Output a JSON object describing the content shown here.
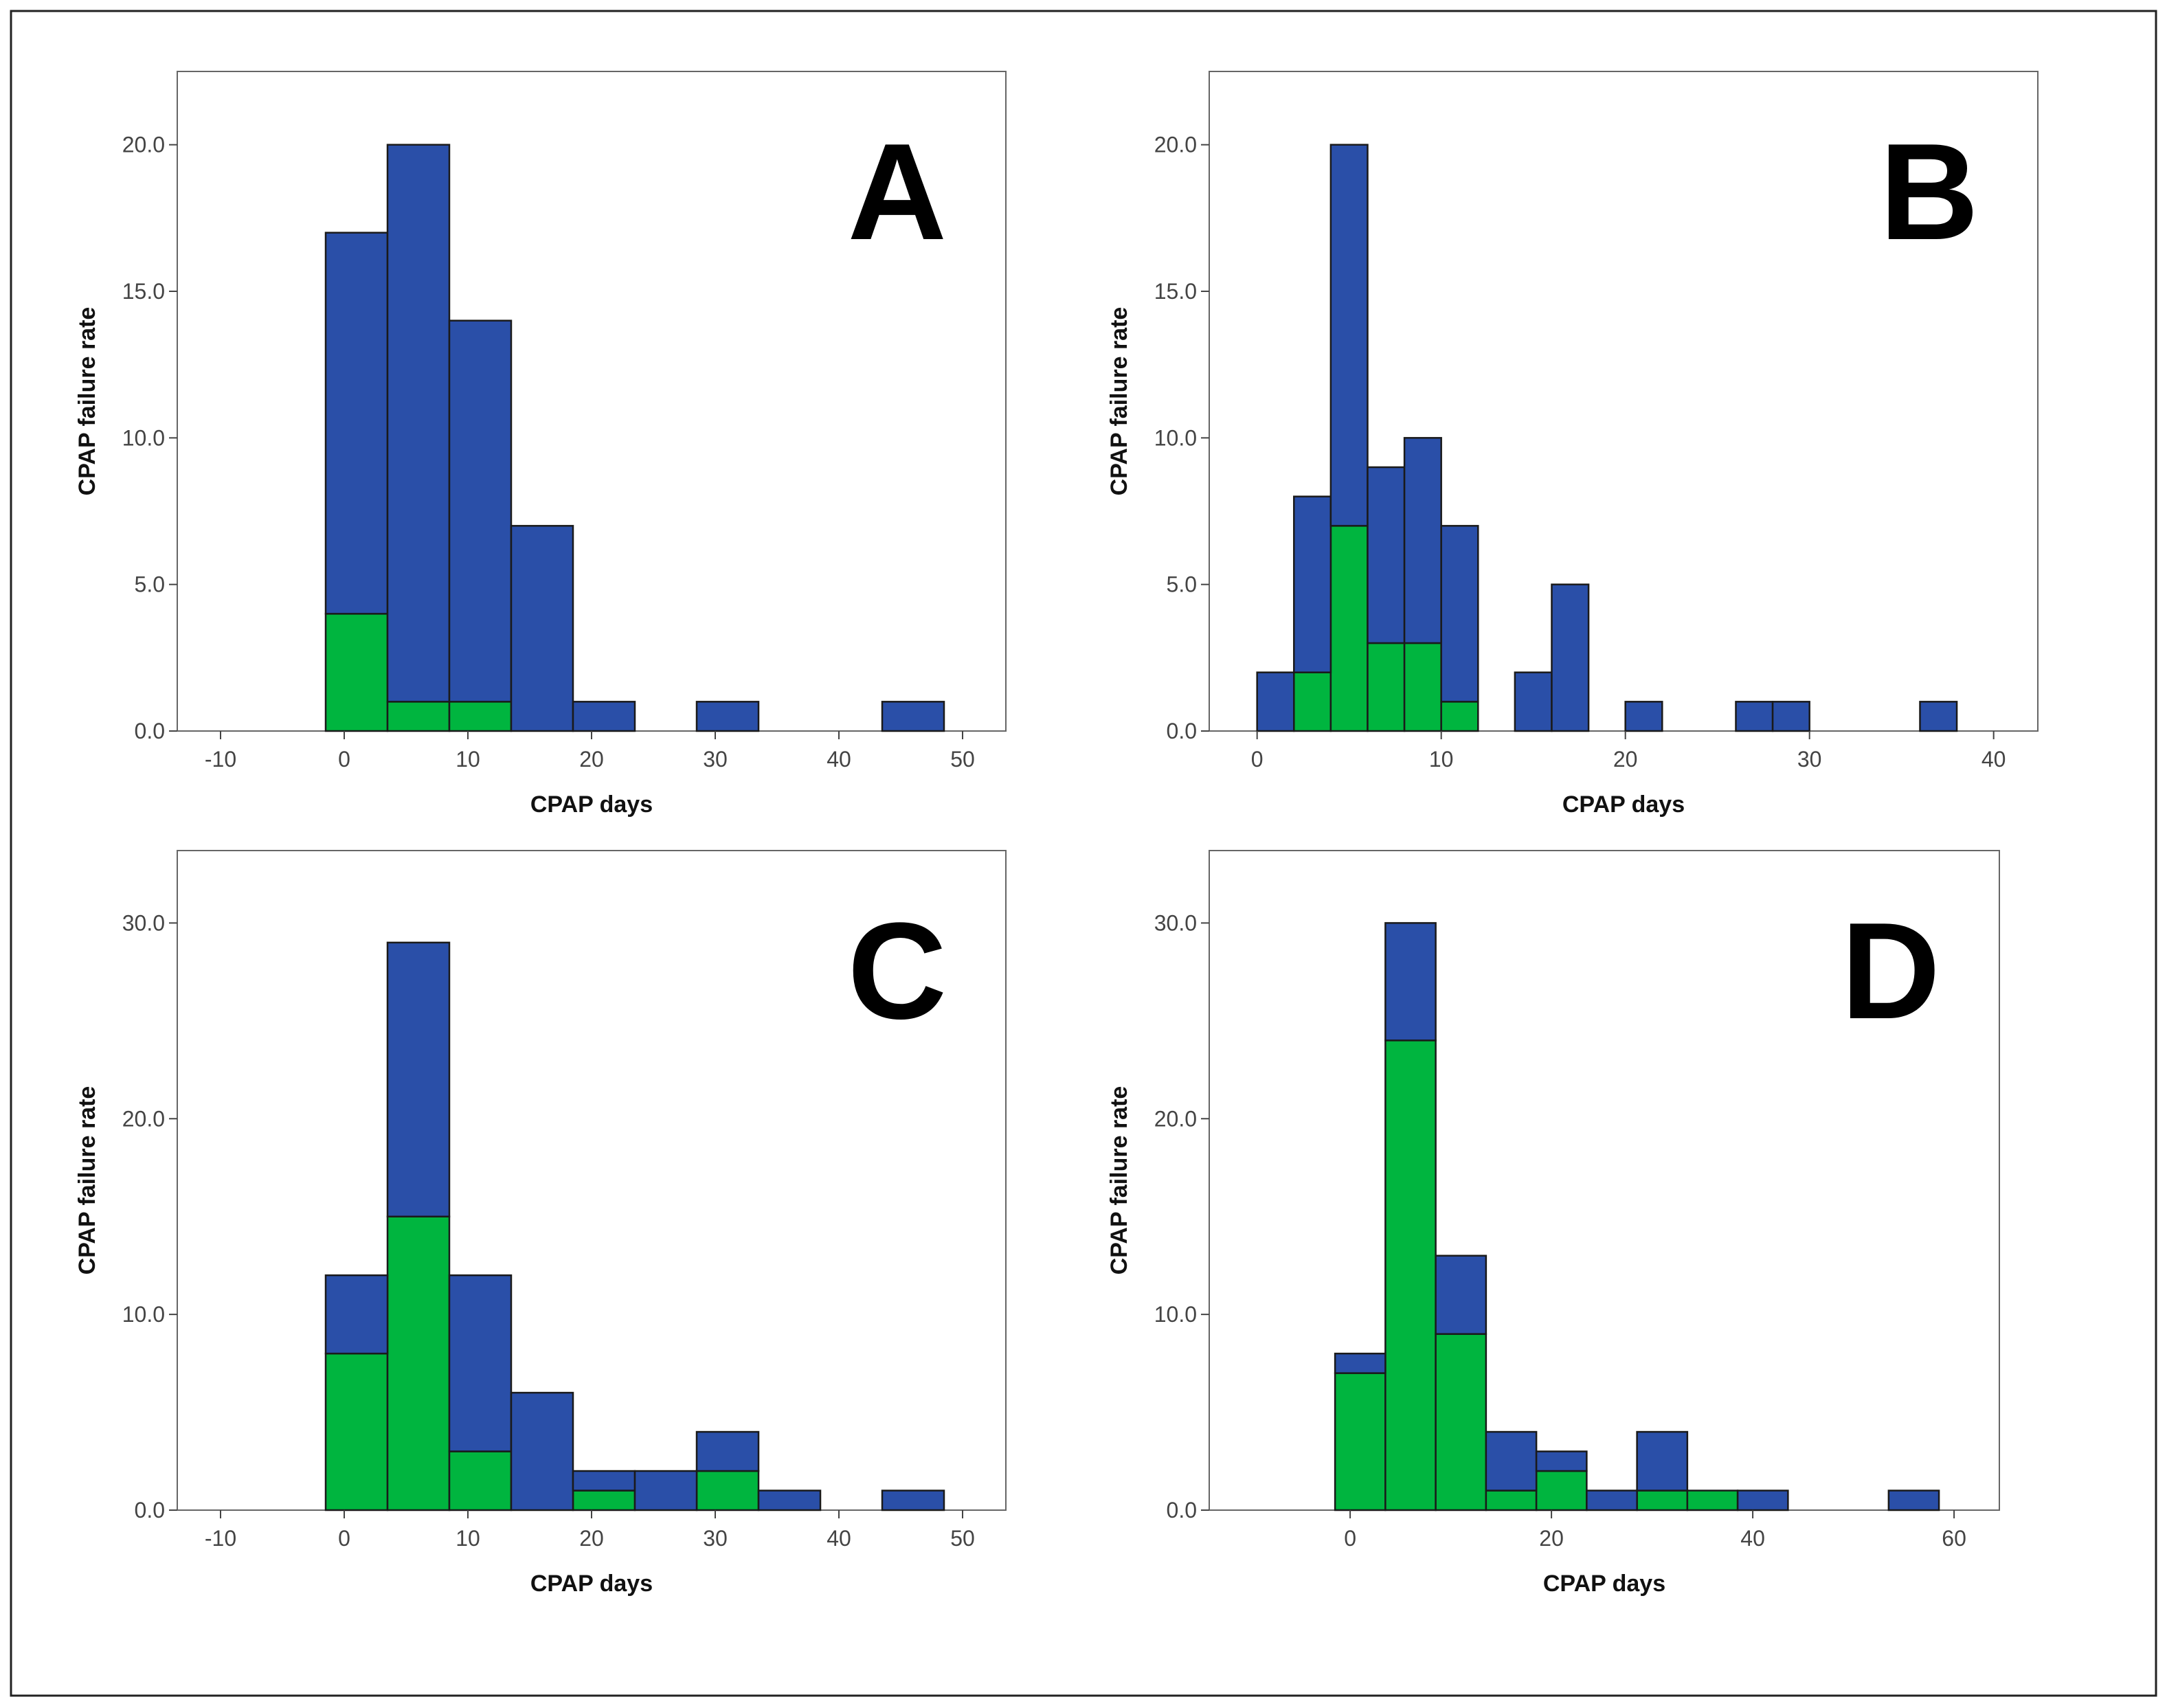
{
  "chart_data": [
    {
      "panel": "A",
      "type": "bar",
      "stacked": true,
      "xlabel": "CPAP days",
      "ylabel": "CPAP failure rate",
      "xlim": [
        -13.5,
        53.5
      ],
      "ylim": [
        0,
        22.5
      ],
      "xticks": [
        -10,
        0,
        10,
        20,
        30,
        40,
        50
      ],
      "xtick_labels": [
        "-10",
        "0",
        "10",
        "20",
        "30",
        "40",
        "50"
      ],
      "yticks": [
        0,
        5,
        10,
        15,
        20
      ],
      "ytick_labels": [
        "0.0",
        "5.0",
        "10.0",
        "15.0",
        "20.0"
      ],
      "bin_edges": [
        -1.5,
        3.5,
        8.5,
        13.5,
        18.5,
        23.5,
        28.5,
        33.5,
        38.5,
        43.5,
        48.5
      ],
      "series": [
        {
          "name": "green",
          "color": "#00b53f",
          "values": [
            4,
            1,
            1,
            0,
            0,
            0,
            0,
            0,
            0,
            0
          ]
        },
        {
          "name": "blue",
          "color": "#2a4fa8",
          "values": [
            13,
            19,
            13,
            7,
            1,
            0,
            1,
            0,
            0,
            1
          ]
        }
      ]
    },
    {
      "panel": "B",
      "type": "bar",
      "stacked": true,
      "xlabel": "CPAP days",
      "ylabel": "CPAP failure rate",
      "xlim": [
        -2.6,
        42.4
      ],
      "ylim": [
        0,
        22.5
      ],
      "xticks": [
        0,
        10,
        20,
        30,
        40
      ],
      "xtick_labels": [
        "0",
        "10",
        "20",
        "30",
        "40"
      ],
      "yticks": [
        0,
        5,
        10,
        15,
        20
      ],
      "ytick_labels": [
        "0.0",
        "5.0",
        "10.0",
        "15.0",
        "20.0"
      ],
      "bin_edges": [
        0,
        2,
        4,
        6,
        8,
        10,
        12,
        14,
        16,
        18,
        20,
        22,
        24,
        26,
        28,
        30,
        32,
        34,
        36,
        38
      ],
      "series": [
        {
          "name": "green",
          "color": "#00b53f",
          "values": [
            0,
            2,
            7,
            3,
            3,
            1,
            0,
            0,
            0,
            0,
            0,
            0,
            0,
            0,
            0,
            0,
            0,
            0,
            0
          ]
        },
        {
          "name": "blue",
          "color": "#2a4fa8",
          "values": [
            2,
            6,
            13,
            6,
            7,
            6,
            0,
            2,
            5,
            0,
            1,
            0,
            0,
            1,
            1,
            0,
            0,
            0,
            1
          ]
        }
      ]
    },
    {
      "panel": "C",
      "type": "bar",
      "stacked": true,
      "xlabel": "CPAP days",
      "ylabel": "CPAP failure rate",
      "xlim": [
        -13.5,
        53.5
      ],
      "ylim": [
        0,
        33.7
      ],
      "xticks": [
        -10,
        0,
        10,
        20,
        30,
        40,
        50
      ],
      "xtick_labels": [
        "-10",
        "0",
        "10",
        "20",
        "30",
        "40",
        "50"
      ],
      "yticks": [
        0,
        10,
        20,
        30
      ],
      "ytick_labels": [
        "0.0",
        "10.0",
        "20.0",
        "30.0"
      ],
      "bin_edges": [
        -1.5,
        3.5,
        8.5,
        13.5,
        18.5,
        23.5,
        28.5,
        33.5,
        38.5,
        43.5,
        48.5
      ],
      "series": [
        {
          "name": "green",
          "color": "#00b53f",
          "values": [
            8,
            15,
            3,
            0,
            1,
            0,
            2,
            0,
            0,
            0
          ]
        },
        {
          "name": "blue",
          "color": "#2a4fa8",
          "values": [
            4,
            14,
            9,
            6,
            1,
            2,
            2,
            1,
            0,
            1
          ]
        }
      ]
    },
    {
      "panel": "D",
      "type": "bar",
      "stacked": true,
      "xlabel": "CPAP days",
      "ylabel": "CPAP failure rate",
      "xlim": [
        -14,
        64.5
      ],
      "ylim": [
        0,
        33.7
      ],
      "xticks": [
        0,
        20,
        40,
        60
      ],
      "xtick_labels": [
        "0",
        "20",
        "40",
        "60"
      ],
      "yticks": [
        0,
        10,
        20,
        30
      ],
      "ytick_labels": [
        "0.0",
        "10.0",
        "20.0",
        "30.0"
      ],
      "bin_edges": [
        -1.5,
        3.5,
        8.5,
        13.5,
        18.5,
        23.5,
        28.5,
        33.5,
        38.5,
        43.5,
        48.5,
        53.5,
        58.5
      ],
      "series": [
        {
          "name": "green",
          "color": "#00b53f",
          "values": [
            7,
            24,
            9,
            1,
            2,
            0,
            1,
            1,
            0,
            0,
            0,
            0
          ]
        },
        {
          "name": "blue",
          "color": "#2a4fa8",
          "values": [
            1,
            6,
            4,
            3,
            1,
            1,
            3,
            0,
            1,
            0,
            0,
            1
          ]
        }
      ]
    }
  ]
}
